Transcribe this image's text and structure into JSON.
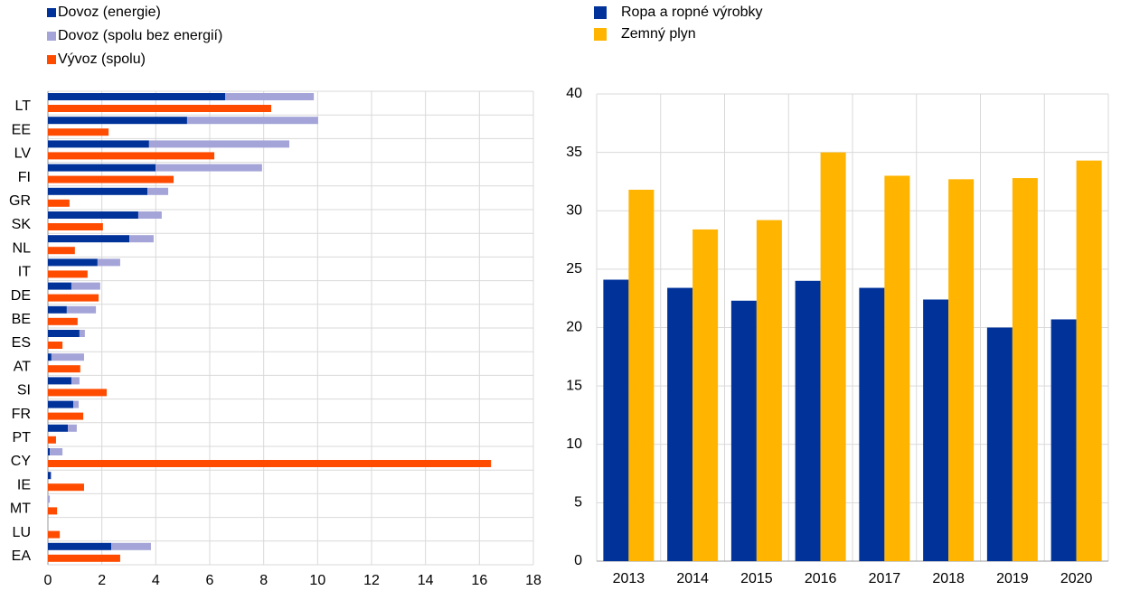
{
  "chart_data": [
    {
      "type": "hbar",
      "categories": [
        "LT",
        "EE",
        "LV",
        "FI",
        "GR",
        "SK",
        "NL",
        "IT",
        "DE",
        "BE",
        "ES",
        "AT",
        "SI",
        "FR",
        "PT",
        "CY",
        "IE",
        "MT",
        "LU",
        "EA"
      ],
      "series": [
        {
          "name": "Dovoz (energie)",
          "color": "#003299",
          "values": [
            6.57,
            5.16,
            3.75,
            3.99,
            3.69,
            3.35,
            3.02,
            1.84,
            0.87,
            0.7,
            1.17,
            0.13,
            0.87,
            0.94,
            0.74,
            0.07,
            0.1,
            0,
            0,
            2.35
          ]
        },
        {
          "name": "Dovoz (spolu bez energií)",
          "color": "#a4a4d8",
          "values": [
            3.29,
            4.86,
            5.2,
            3.95,
            0.77,
            0.87,
            0.9,
            0.84,
            1.07,
            1.08,
            0.2,
            1.21,
            0.3,
            0.2,
            0.33,
            0.47,
            0.03,
            0.07,
            0,
            1.47
          ]
        },
        {
          "name": "Vývoz (spolu)",
          "color": "#ff4b00",
          "values": [
            8.28,
            2.25,
            6.17,
            4.66,
            0.8,
            2.04,
            1.0,
            1.47,
            1.88,
            1.1,
            0.54,
            1.2,
            2.18,
            1.31,
            0.3,
            16.43,
            1.34,
            0.34,
            0.44,
            2.68
          ]
        }
      ],
      "xlim": [
        0,
        18
      ],
      "xticks": [
        0,
        2,
        4,
        6,
        8,
        10,
        12,
        14,
        16,
        18
      ],
      "grid": true
    },
    {
      "type": "bar",
      "categories": [
        "2013",
        "2014",
        "2015",
        "2016",
        "2017",
        "2018",
        "2019",
        "2020"
      ],
      "series": [
        {
          "name": "Ropa a ropné výrobky",
          "color": "#003299",
          "values": [
            24.1,
            23.4,
            22.3,
            24.0,
            23.4,
            22.4,
            20.0,
            20.7
          ]
        },
        {
          "name": "Zemný plyn",
          "color": "#ffb400",
          "values": [
            31.8,
            28.4,
            29.2,
            35.0,
            33.0,
            32.7,
            32.8,
            34.3
          ]
        }
      ],
      "ylim": [
        0,
        40
      ],
      "yticks": [
        0,
        5,
        10,
        15,
        20,
        25,
        30,
        35,
        40
      ],
      "grid": true
    }
  ]
}
